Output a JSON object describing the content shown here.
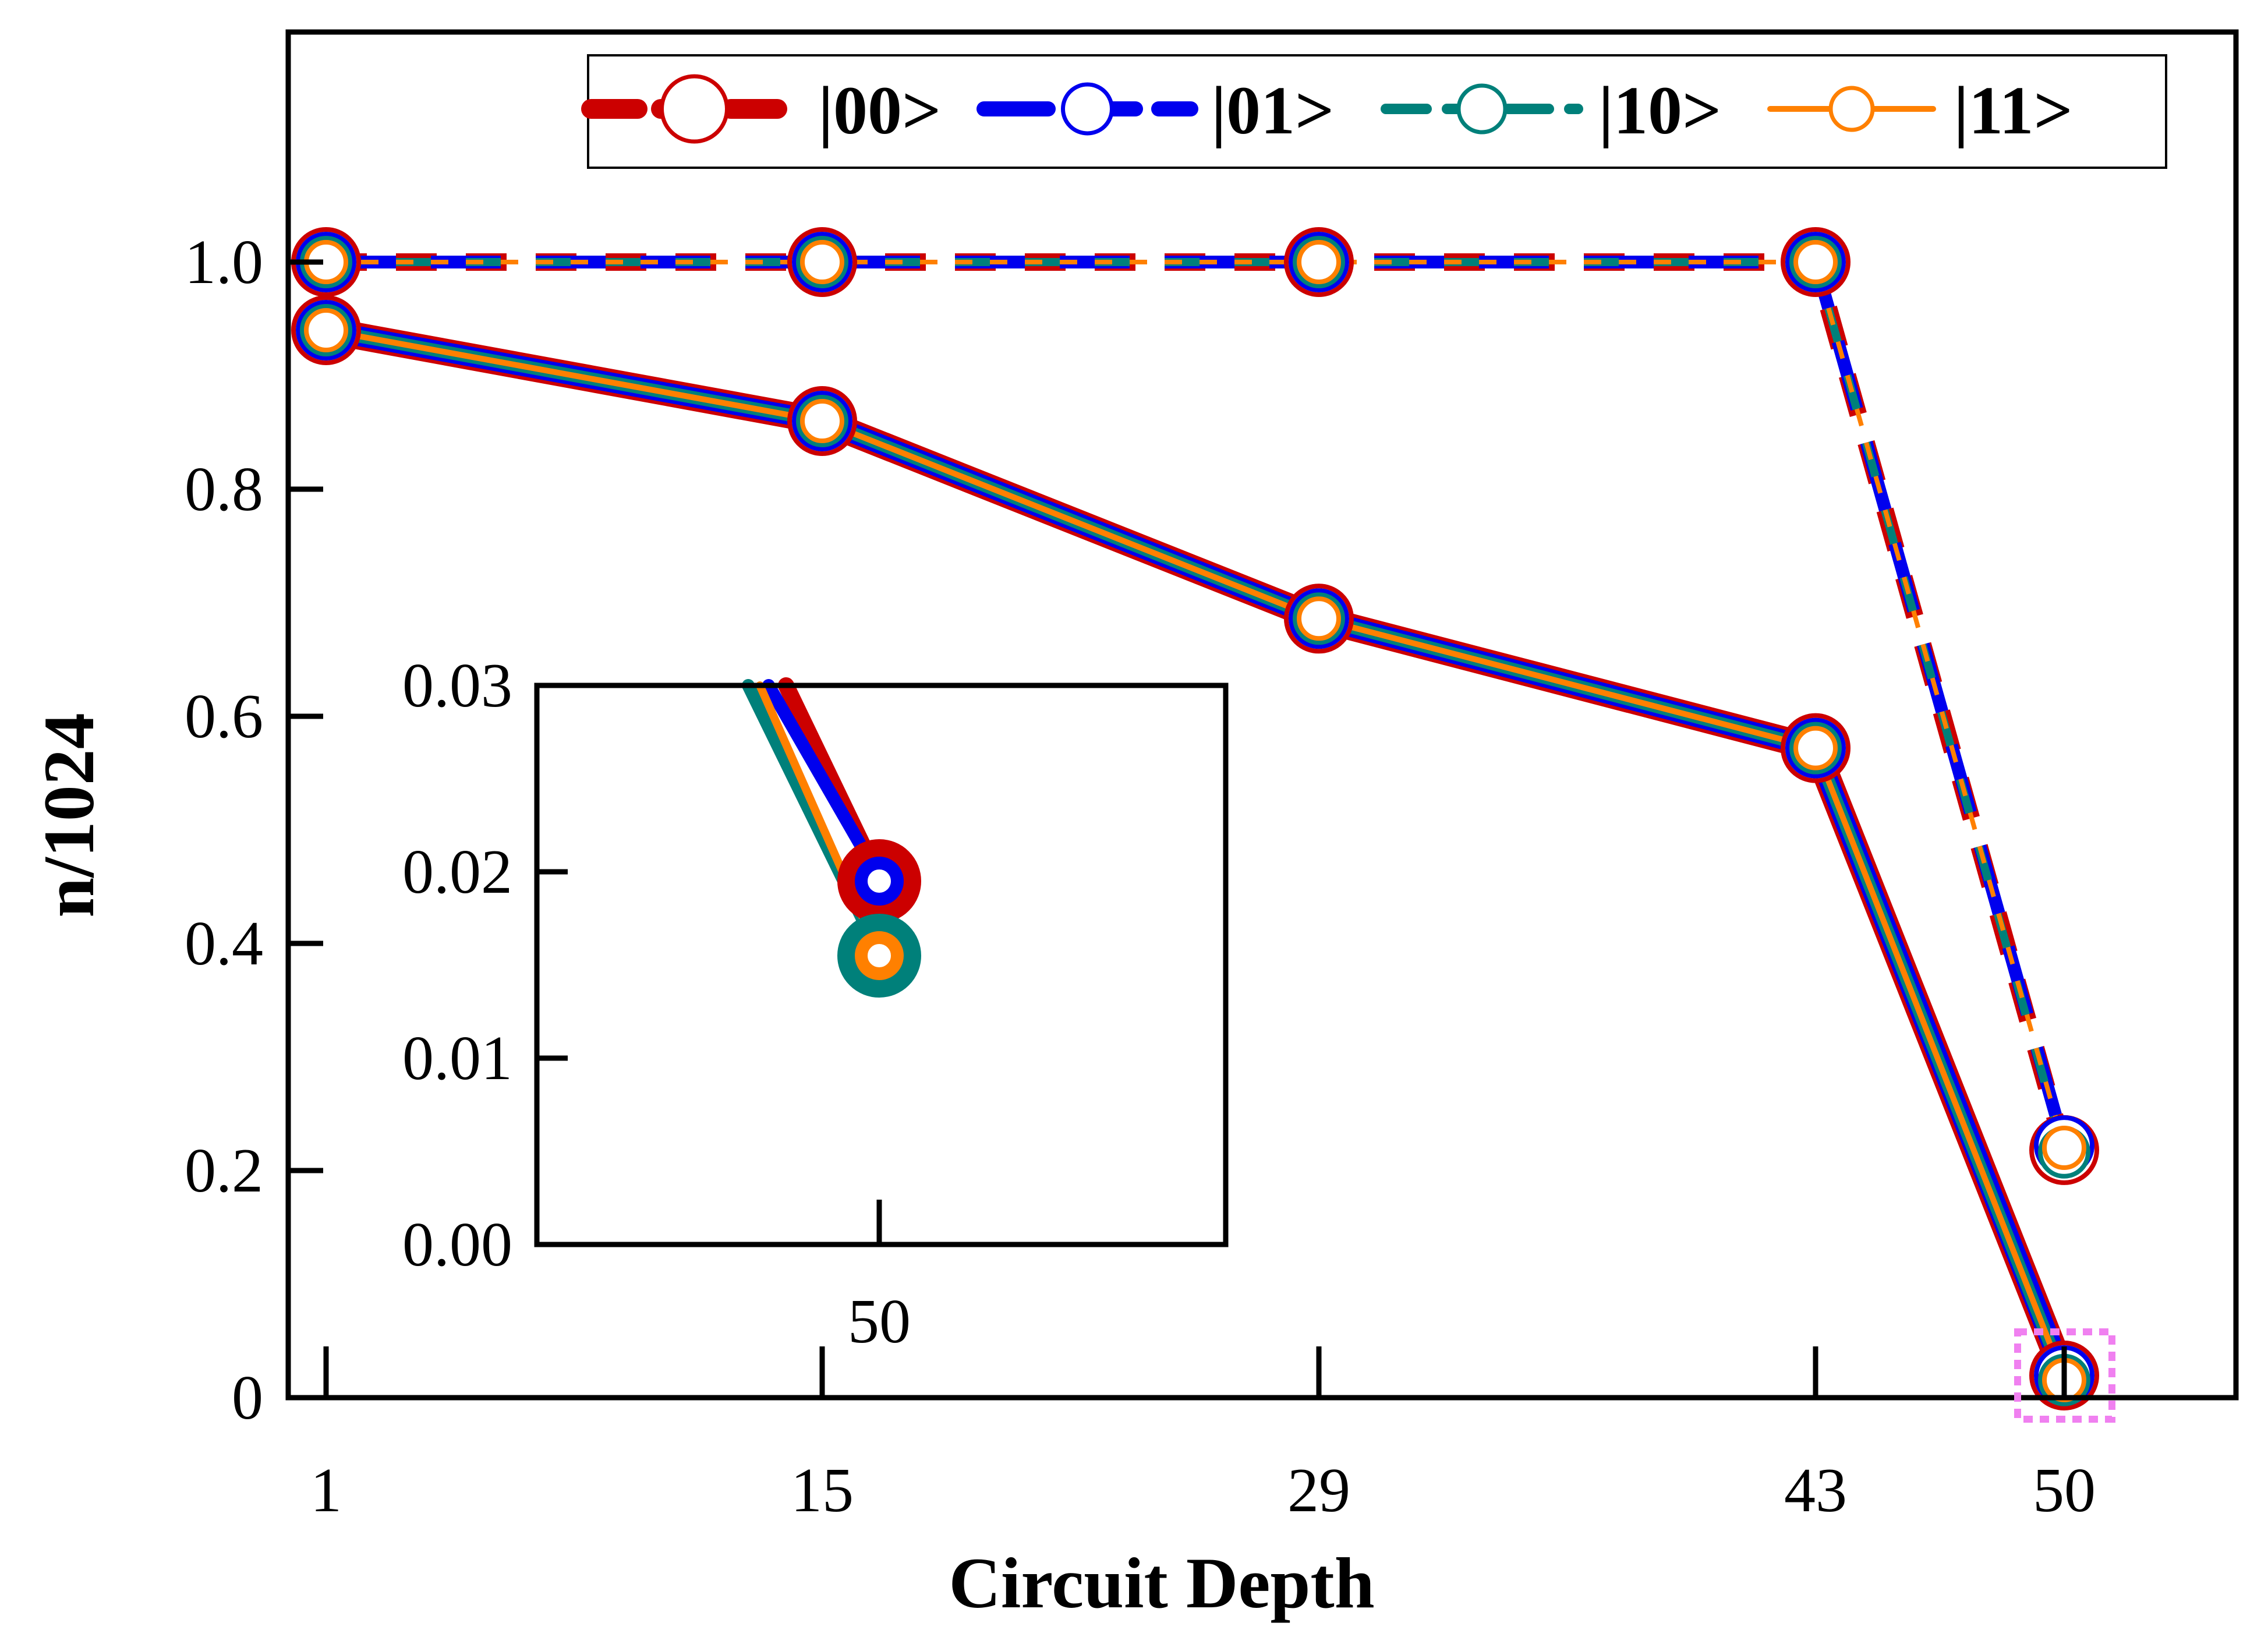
{
  "chart_data": {
    "type": "line",
    "title": "",
    "xlabel": "Circuit Depth",
    "ylabel": "n/1024",
    "categories": [
      "1",
      "15",
      "29",
      "43",
      "50"
    ],
    "x": [
      1,
      15,
      29,
      43,
      50
    ],
    "ylim": [
      0,
      1.2
    ],
    "yticks": [
      "0",
      "0.2",
      "0.4",
      "0.6",
      "0.8",
      "1.0"
    ],
    "grid": false,
    "legend_position": "top-right",
    "series": [
      {
        "name": "|00>",
        "color": "#cc0000",
        "style": "dashed",
        "values": [
          1.0,
          1.0,
          1.0,
          1.0,
          0.218
        ]
      },
      {
        "name": "|01>",
        "color": "#0000ee",
        "style": "dashed",
        "values": [
          1.0,
          1.0,
          1.0,
          1.0,
          0.222
        ]
      },
      {
        "name": "|10>",
        "color": "#00807a",
        "style": "dashed",
        "values": [
          1.0,
          1.0,
          1.0,
          1.0,
          0.216
        ]
      },
      {
        "name": "|11>",
        "color": "#ff8000",
        "style": "dashed",
        "values": [
          1.0,
          1.0,
          1.0,
          1.0,
          0.22
        ]
      },
      {
        "name": "|00>",
        "color": "#cc0000",
        "style": "solid",
        "values": [
          0.94,
          0.86,
          0.686,
          0.572,
          0.0195
        ]
      },
      {
        "name": "|01>",
        "color": "#0000ee",
        "style": "solid",
        "values": [
          0.94,
          0.86,
          0.686,
          0.572,
          0.0195
        ]
      },
      {
        "name": "|10>",
        "color": "#00807a",
        "style": "solid",
        "values": [
          0.94,
          0.86,
          0.686,
          0.572,
          0.0155
        ]
      },
      {
        "name": "|11>",
        "color": "#ff8000",
        "style": "solid",
        "values": [
          0.94,
          0.86,
          0.686,
          0.572,
          0.0155
        ]
      }
    ],
    "inset": {
      "xtick": "50",
      "ylim": [
        0,
        0.03
      ],
      "yticks": [
        "0.00",
        "0.01",
        "0.02",
        "0.03"
      ],
      "points": [
        {
          "name": "|00>",
          "color": "#cc0000",
          "value": 0.0195
        },
        {
          "name": "|01>",
          "color": "#0000ee",
          "value": 0.0195
        },
        {
          "name": "|10>",
          "color": "#00807a",
          "value": 0.0155
        },
        {
          "name": "|11>",
          "color": "#ff8000",
          "value": 0.0155
        }
      ]
    },
    "highlight_color": "#f080f0"
  }
}
